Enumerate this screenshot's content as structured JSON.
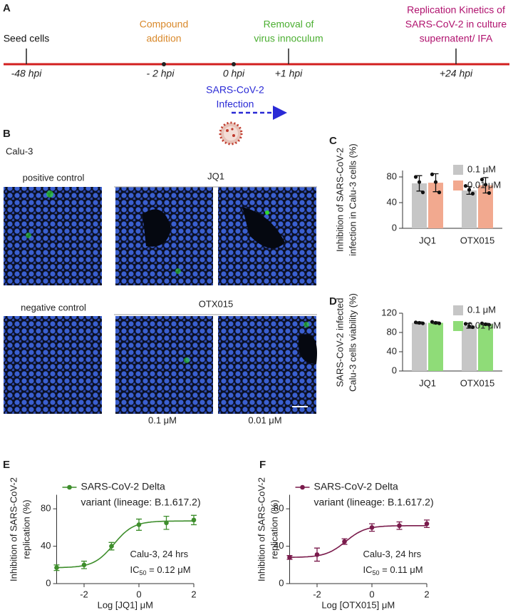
{
  "timeline": {
    "panel": "A",
    "events": [
      {
        "label": [
          "Seed cells"
        ],
        "time": "-48 hpi",
        "color": "#111111"
      },
      {
        "label": [
          "Compound",
          "addition"
        ],
        "time": "- 2 hpi",
        "color": "#d9892b"
      },
      {
        "label": [
          "Removal of",
          "virus innoculum"
        ],
        "time": "+1 hpi",
        "color": "#4caf32"
      },
      {
        "label": [
          "Replication Kinetics of",
          "SARS-CoV-2 in culture",
          "supernatent/ IFA"
        ],
        "time": "+24 hpi",
        "color": "#b0126e"
      }
    ],
    "infection": {
      "label": [
        "SARS-CoV-2",
        "Infection"
      ],
      "time": "0 hpi",
      "color": "#2a2ad6"
    }
  },
  "images": {
    "panel": "B",
    "cell_line": "Calu-3",
    "rows": [
      {
        "control": "positive control",
        "treatment": "JQ1"
      },
      {
        "control": "negative control",
        "treatment": "OTX015"
      }
    ],
    "concentrations": [
      "0.1 μM",
      "0.01 μM"
    ]
  },
  "chart_data": [
    {
      "type": "bar",
      "panel": "C",
      "y_label": [
        "Inhibition of SARS-CoV-2",
        "infection in Calu-3 cells (%)"
      ],
      "categories": [
        "JQ1",
        "OTX015"
      ],
      "ylim": [
        0,
        90
      ],
      "yticks": [
        0,
        40,
        80
      ],
      "series": [
        {
          "name": "0.1 μM",
          "color": "#c6c6c6",
          "values": [
            70,
            59
          ],
          "errors": [
            12,
            6
          ],
          "points": [
            [
              80,
              72,
              56
            ],
            [
              66,
              60,
              54
            ]
          ]
        },
        {
          "name": "0.01 μM",
          "color": "#f2a98f",
          "values": [
            71,
            67
          ],
          "errors": [
            14,
            12
          ],
          "points": [
            [
              84,
              72,
              56
            ],
            [
              76,
              68,
              55
            ]
          ]
        }
      ]
    },
    {
      "type": "bar",
      "panel": "D",
      "y_label": [
        "SARS-CoV-2 infected",
        "Calu-3 cells viability (%)"
      ],
      "categories": [
        "JQ1",
        "OTX015"
      ],
      "ylim": [
        0,
        120
      ],
      "yticks": [
        0,
        40,
        80,
        120
      ],
      "series": [
        {
          "name": "0.1 μM",
          "color": "#c6c6c6",
          "values": [
            100,
            94
          ],
          "errors": [
            2,
            5
          ],
          "points": [
            [
              101,
              100,
              99
            ],
            [
              98,
              93,
              91
            ]
          ]
        },
        {
          "name": "0.01 μM",
          "color": "#8fdc78",
          "values": [
            100,
            97
          ],
          "errors": [
            2,
            2
          ],
          "points": [
            [
              102,
              100,
              99
            ],
            [
              99,
              97,
              96
            ]
          ]
        }
      ]
    },
    {
      "type": "curve",
      "panel": "E",
      "y_label": [
        "Inhibition of SARS-CoV-2",
        "replication (%)"
      ],
      "x_label": "Log [JQ1] μM",
      "xlim": [
        -3,
        2
      ],
      "xticks": [
        -2,
        0,
        2
      ],
      "ylim": [
        0,
        95
      ],
      "yticks": [
        0,
        40,
        80
      ],
      "series": [
        {
          "name": [
            "SARS-CoV-2 Delta",
            "variant (lineage: B.1.617.2)"
          ],
          "color": "#3e8e2c",
          "x": [
            -3,
            -2,
            -1,
            0,
            1,
            2
          ],
          "values": [
            17,
            20,
            40,
            63,
            65,
            68
          ],
          "errors": [
            3,
            4,
            4,
            6,
            7,
            5
          ],
          "fit": {
            "bottom": 17,
            "top": 67,
            "logx50": -0.92,
            "hill": 1.2
          }
        }
      ],
      "annotations": [
        {
          "parts": [
            "Calu-3, 24 hrs"
          ]
        },
        {
          "parts": [
            "IC",
            "50",
            " = 0.12 μM"
          ],
          "subscript": 1
        }
      ]
    },
    {
      "type": "curve",
      "panel": "F",
      "y_label": [
        "Inhibition of SARS-CoV-2",
        "replication (%)"
      ],
      "x_label": "Log [OTX015] μM",
      "xlim": [
        -3,
        2
      ],
      "xticks": [
        -2,
        0,
        2
      ],
      "ylim": [
        0,
        95
      ],
      "yticks": [
        0,
        40,
        80
      ],
      "series": [
        {
          "name": [
            "SARS-CoV-2 Delta",
            "variant (lineage: B.1.617.2)"
          ],
          "color": "#7a1b4c",
          "x": [
            -3,
            -2,
            -1,
            0,
            1,
            2
          ],
          "values": [
            28,
            31,
            45,
            60,
            62,
            64
          ],
          "errors": [
            2,
            7,
            3,
            4,
            4,
            4
          ],
          "fit": {
            "bottom": 28,
            "top": 62,
            "logx50": -0.96,
            "hill": 1.2
          }
        }
      ],
      "annotations": [
        {
          "parts": [
            "Calu-3, 24 hrs"
          ]
        },
        {
          "parts": [
            "IC",
            "50",
            " = 0.11 μM"
          ],
          "subscript": 1
        }
      ]
    }
  ]
}
